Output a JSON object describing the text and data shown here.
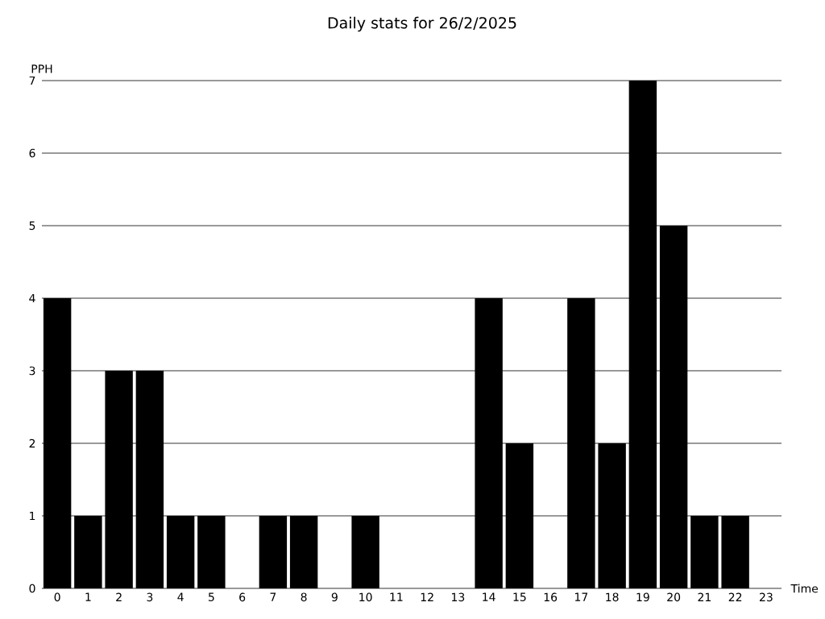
{
  "chart_data": {
    "type": "bar",
    "title": "Daily stats for 26/2/2025",
    "xlabel": "Time",
    "ylabel": "PPH",
    "categories": [
      "0",
      "1",
      "2",
      "3",
      "4",
      "5",
      "6",
      "7",
      "8",
      "9",
      "10",
      "11",
      "12",
      "13",
      "14",
      "15",
      "16",
      "17",
      "18",
      "19",
      "20",
      "21",
      "22",
      "23"
    ],
    "values": [
      4,
      1,
      3,
      3,
      1,
      1,
      0,
      1,
      1,
      0,
      1,
      0,
      0,
      0,
      4,
      2,
      0,
      4,
      2,
      7,
      5,
      1,
      1,
      0
    ],
    "color": "#000000",
    "ylim": [
      0,
      7
    ],
    "yticks": [
      0,
      1,
      2,
      3,
      4,
      5,
      6,
      7
    ],
    "grid": "y"
  }
}
